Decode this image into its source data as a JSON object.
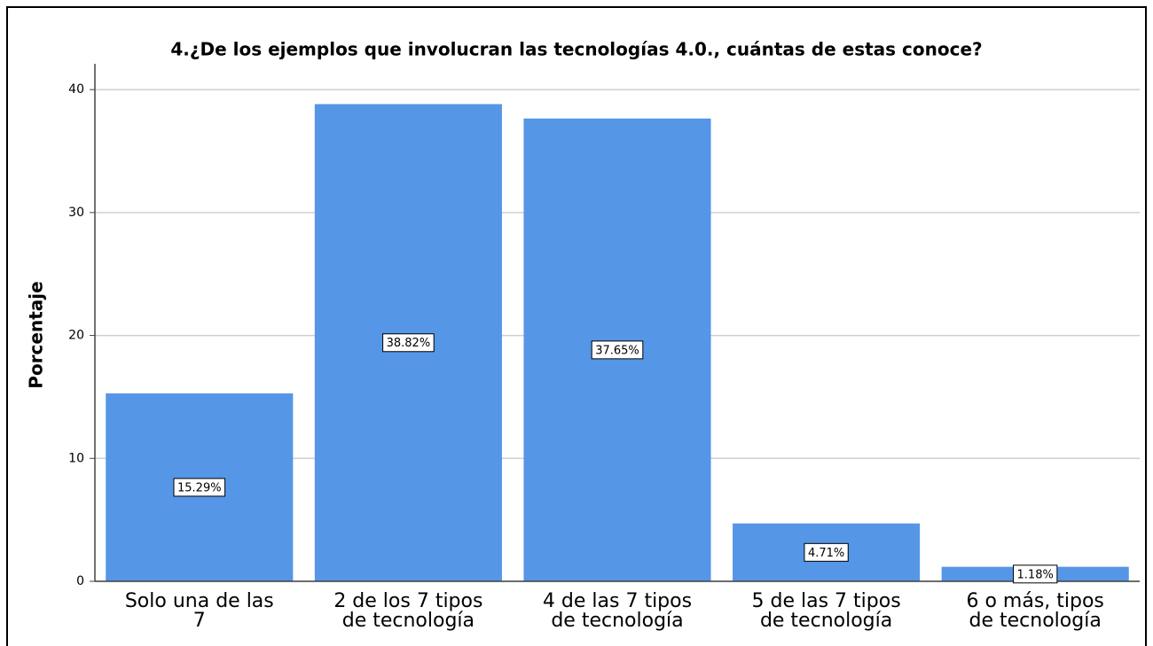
{
  "chart_data": {
    "type": "bar",
    "title": "4.¿De los ejemplos que involucran las tecnologías 4.0., cuántas de estas conoce?",
    "y_label": "Porcentaje",
    "categories": [
      "Solo una de las\n7",
      "2 de los 7 tipos\nde tecnología",
      "4 de las 7 tipos\nde tecnología",
      "5 de las 7 tipos\nde tecnología",
      "6 o más, tipos\nde tecnología"
    ],
    "values": [
      15.29,
      38.82,
      37.65,
      4.71,
      1.18
    ],
    "value_labels": [
      "15.29%",
      "38.82%",
      "37.65%",
      "4.71%",
      "1.18%"
    ],
    "color": "#5596e6",
    "ylim": [
      0,
      42.1
    ],
    "yticks": [
      0,
      10,
      20,
      30,
      40
    ],
    "grid": true
  }
}
